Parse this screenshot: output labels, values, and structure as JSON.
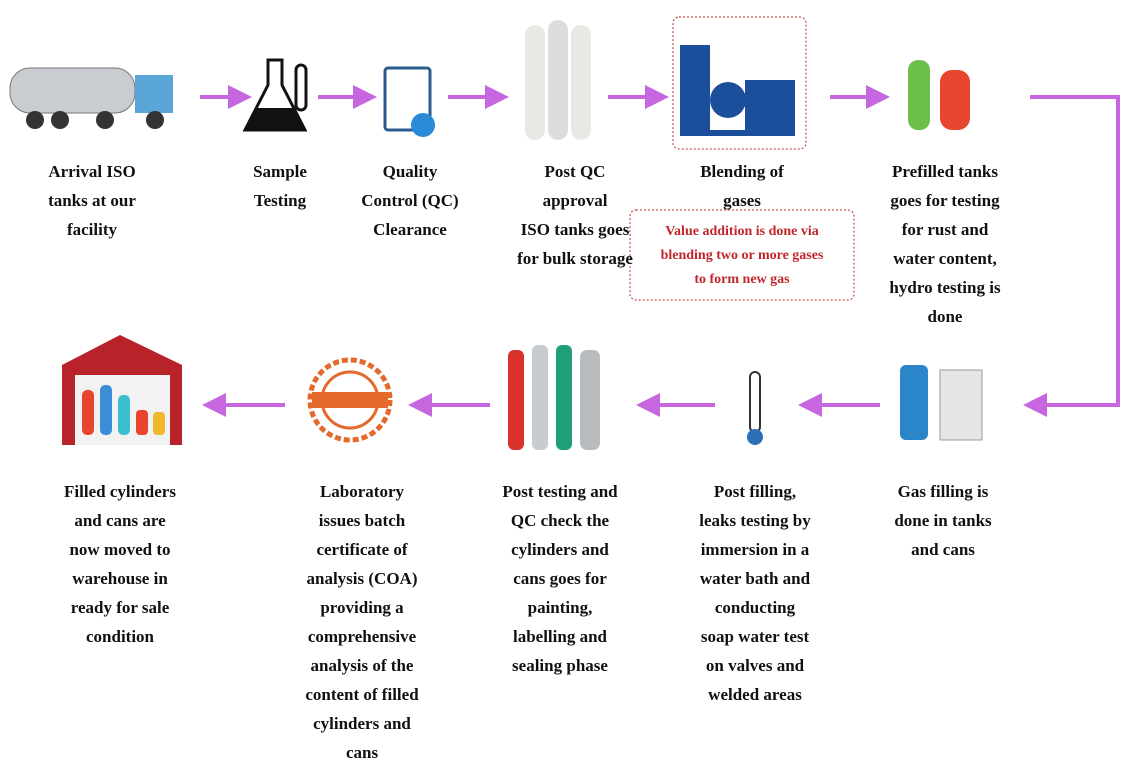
{
  "steps": [
    {
      "lines": [
        "Arrival ISO",
        "tanks at our",
        "facility"
      ]
    },
    {
      "lines": [
        "Sample",
        "Testing"
      ]
    },
    {
      "lines": [
        "Quality",
        "Control (QC)",
        "Clearance"
      ]
    },
    {
      "lines": [
        "Post QC",
        "approval",
        "ISO tanks goes",
        "for bulk storage"
      ]
    },
    {
      "lines": [
        "Blending of",
        "gases"
      ],
      "note": [
        "Value addition is done via",
        "blending two or more gases",
        "to form new gas"
      ]
    },
    {
      "lines": [
        "Prefilled tanks",
        "goes for testing",
        "for rust and",
        "water content,",
        "hydro testing is",
        "done"
      ]
    },
    {
      "lines": [
        "Gas filling is",
        "done in tanks",
        "and cans"
      ]
    },
    {
      "lines": [
        "Post filling,",
        "leaks testing by",
        "immersion in a",
        "water bath and",
        "conducting",
        "soap water test",
        "on valves and",
        "welded areas"
      ]
    },
    {
      "lines": [
        "Post testing and",
        "QC check the",
        "cylinders and",
        "cans goes for",
        "painting,",
        "labelling and",
        "sealing phase"
      ]
    },
    {
      "lines": [
        "Laboratory",
        "issues batch",
        "certificate of",
        "analysis (COA)",
        "providing a",
        "comprehensive",
        "analysis of the",
        "content of filled",
        "cylinders and",
        "cans"
      ]
    },
    {
      "lines": [
        "Filled cylinders",
        "and cans are",
        "now moved to",
        "warehouse in",
        "ready for sale",
        "condition"
      ]
    }
  ]
}
